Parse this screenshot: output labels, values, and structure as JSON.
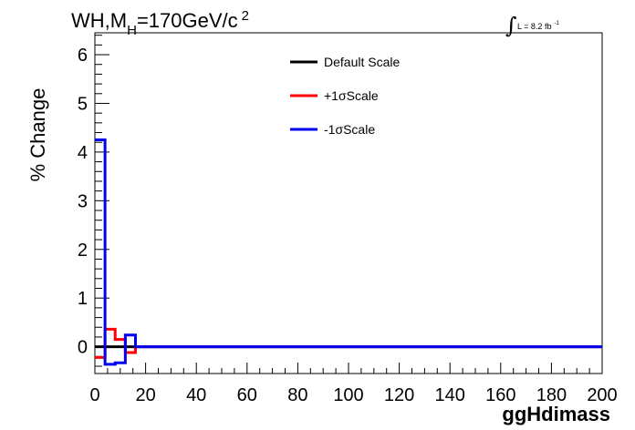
{
  "chart_data": {
    "type": "line",
    "title_parts": {
      "main": "WH,M",
      "sub": "H",
      "rest": "=170GeV/c",
      "sup": "2"
    },
    "lumi_label": "L = 8.2 fb",
    "lumi_sup": "-1",
    "integral_symbol": "∫",
    "xlabel": "ggHdimass",
    "ylabel": "% Change",
    "xlim": [
      0,
      200
    ],
    "ylim": [
      -0.55,
      6.45
    ],
    "x_ticks": [
      0,
      20,
      40,
      60,
      80,
      100,
      120,
      140,
      160,
      180,
      200
    ],
    "y_ticks": [
      0,
      1,
      2,
      3,
      4,
      5,
      6
    ],
    "x_tick_labels": [
      "0",
      "20",
      "40",
      "60",
      "80",
      "100",
      "120",
      "140",
      "160",
      "180",
      "200"
    ],
    "y_tick_labels": [
      "0",
      "1",
      "2",
      "3",
      "4",
      "5",
      "6"
    ],
    "bin_edges": [
      0,
      4,
      8,
      12,
      16,
      200
    ],
    "series": [
      {
        "name": "Default Scale",
        "color": "#000000",
        "values": [
          0,
          0,
          0,
          0,
          0
        ]
      },
      {
        "name": "+1σScale",
        "color": "#ff0000",
        "values": [
          -0.22,
          0.36,
          0.15,
          -0.12,
          0
        ]
      },
      {
        "name": "-1σScale",
        "color": "#0000ee",
        "values": [
          4.25,
          -0.36,
          -0.33,
          0.24,
          0
        ]
      }
    ],
    "legend_position": "top-right",
    "grid": false
  }
}
